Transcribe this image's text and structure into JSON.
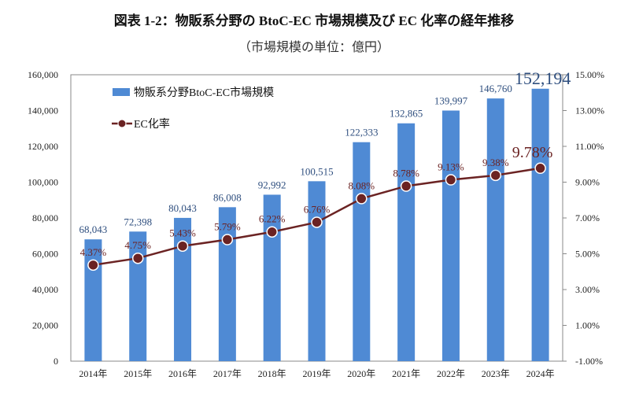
{
  "chart_data": {
    "type": "bar+line",
    "title": "図表 1-2：物販系分野の BtoC-EC 市場規模及び EC 化率の経年推移",
    "subtitle": "（市場規模の単位：億円）",
    "categories": [
      "2014年",
      "2015年",
      "2016年",
      "2017年",
      "2018年",
      "2019年",
      "2020年",
      "2021年",
      "2022年",
      "2023年",
      "2024年"
    ],
    "series": [
      {
        "name": "物販系分野BtoC-EC市場規模",
        "type": "bar",
        "axis": "left",
        "color": "#4f8ad4",
        "values": [
          68043,
          72398,
          80043,
          86008,
          92992,
          100515,
          122333,
          132865,
          139997,
          146760,
          152194
        ],
        "labels": [
          "68,043",
          "72,398",
          "80,043",
          "86,008",
          "92,992",
          "100,515",
          "122,333",
          "132,865",
          "139,997",
          "146,760",
          "152,194"
        ]
      },
      {
        "name": "EC化率",
        "type": "line",
        "axis": "right",
        "color": "#6b2323",
        "values": [
          4.37,
          4.75,
          5.43,
          5.79,
          6.22,
          6.76,
          8.08,
          8.78,
          9.13,
          9.38,
          9.78
        ],
        "labels": [
          "4.37%",
          "4.75%",
          "5.43%",
          "5.79%",
          "6.22%",
          "6.76%",
          "8.08%",
          "8.78%",
          "9.13%",
          "9.38%",
          "9.78%"
        ]
      }
    ],
    "y_left": {
      "range": [
        0,
        160000
      ],
      "ticks": [
        "0",
        "20,000",
        "40,000",
        "60,000",
        "80,000",
        "100,000",
        "120,000",
        "140,000",
        "160,000"
      ]
    },
    "y_right": {
      "range": [
        -1,
        15
      ],
      "ticks": [
        "-1.00%",
        "1.00%",
        "3.00%",
        "5.00%",
        "7.00%",
        "9.00%",
        "11.00%",
        "13.00%",
        "15.00%"
      ]
    },
    "legend": "top-left",
    "grid": false,
    "label_color_bar": "#2f4f7f"
  }
}
